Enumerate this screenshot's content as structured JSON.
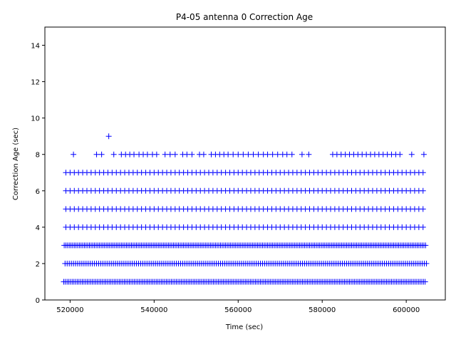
{
  "chart_data": {
    "type": "scatter",
    "title": "P4-05 antenna 0 Correction Age",
    "xlabel": "Time (sec)",
    "ylabel": "Correction Age (sec)",
    "xlim": [
      514000,
      609300
    ],
    "ylim": [
      0,
      15
    ],
    "xticks": [
      520000,
      540000,
      560000,
      580000,
      600000
    ],
    "xtick_labels": [
      "520000",
      "540000",
      "560000",
      "580000",
      "600000"
    ],
    "yticks": [
      0,
      2,
      4,
      6,
      8,
      10,
      12,
      14
    ],
    "ytick_labels": [
      "0",
      "2",
      "4",
      "6",
      "8",
      "10",
      "12",
      "14"
    ],
    "marker": "+",
    "color": "#0000ff",
    "grid": false,
    "series": [
      {
        "y": 1,
        "note_style": "dense",
        "x_start": 518500,
        "x_end": 604800,
        "x_step": 400,
        "x": [
          518500
        ]
      },
      {
        "y": 2,
        "x_start": 518800,
        "x_end": 604800,
        "x_step": 500,
        "x": []
      },
      {
        "y": 3,
        "x_start": 518600,
        "x_end": 604800,
        "x_step": 400,
        "x": []
      },
      {
        "y": 4,
        "x_start": 519000,
        "x_end": 604500,
        "x_step": 1000,
        "x": []
      },
      {
        "y": 5,
        "x_start": 519000,
        "x_end": 604500,
        "x_step": 1000,
        "x": []
      },
      {
        "y": 6,
        "x_start": 519000,
        "x_end": 604500,
        "x_step": 1000,
        "x": []
      },
      {
        "y": 7,
        "x_start": 519000,
        "x_end": 604500,
        "x_step": 1000,
        "x": []
      },
      {
        "y": 8,
        "x": [
          520800,
          526300,
          527500,
          530400,
          532200,
          533200,
          534200,
          535200,
          536400,
          537400,
          538400,
          539600,
          540600,
          542600,
          543800,
          545000,
          546800,
          547800,
          549000,
          550800,
          551800,
          553600,
          554600,
          555600,
          556600,
          557600,
          558800,
          560000,
          561200,
          562400,
          563600,
          564800,
          566000,
          567000,
          568200,
          569400,
          570600,
          571600,
          572800,
          575200,
          576800,
          582500,
          583500,
          584500,
          585500,
          586500,
          587500,
          588500,
          589500,
          590500,
          591500,
          592500,
          593500,
          594500,
          595500,
          596500,
          597500,
          598500,
          601300,
          604200
        ]
      },
      {
        "y": 9,
        "x": [
          529200
        ]
      }
    ]
  }
}
